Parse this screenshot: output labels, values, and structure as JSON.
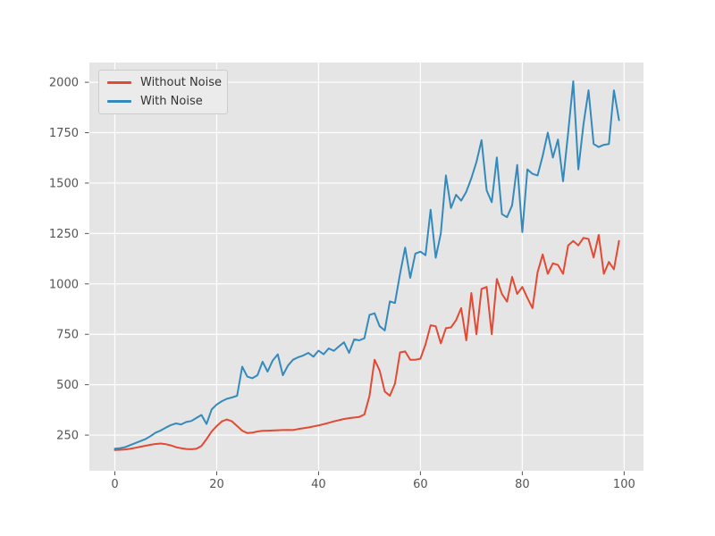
{
  "chart_data": {
    "type": "line",
    "title": "",
    "xlabel": "",
    "ylabel": "",
    "x_start": 0,
    "x_step": 1,
    "x_ticks": [
      0,
      20,
      40,
      60,
      80,
      100
    ],
    "y_ticks": [
      250,
      500,
      750,
      1000,
      1250,
      1500,
      1750,
      2000
    ],
    "xlim": [
      -5,
      103.8
    ],
    "ylim": [
      73,
      2098
    ],
    "grid": true,
    "legend_position": "upper left",
    "series": [
      {
        "name": "Without Noise",
        "color": "#E24A33",
        "values": [
          176,
          177,
          179,
          182,
          187,
          192,
          197,
          202,
          206,
          208,
          205,
          199,
          190,
          185,
          181,
          180,
          182,
          196,
          230,
          268,
          295,
          318,
          328,
          318,
          295,
          272,
          260,
          262,
          268,
          271,
          272,
          273,
          274,
          275,
          276,
          275,
          280,
          284,
          288,
          293,
          298,
          304,
          311,
          318,
          324,
          330,
          334,
          337,
          340,
          352,
          444,
          624,
          570,
          466,
          445,
          505,
          660,
          665,
          624,
          624,
          629,
          700,
          795,
          790,
          705,
          780,
          784,
          820,
          880,
          720,
          955,
          750,
          975,
          985,
          750,
          1025,
          950,
          912,
          1035,
          950,
          985,
          930,
          880,
          1058,
          1146,
          1050,
          1102,
          1094,
          1050,
          1191,
          1213,
          1191,
          1228,
          1223,
          1131,
          1243,
          1050,
          1109,
          1072,
          1213
        ]
      },
      {
        "name": "With Noise",
        "color": "#348ABD",
        "values": [
          183,
          185,
          190,
          200,
          210,
          220,
          230,
          245,
          262,
          273,
          287,
          300,
          308,
          303,
          315,
          320,
          335,
          350,
          305,
          377,
          402,
          418,
          430,
          437,
          445,
          589,
          540,
          532,
          547,
          614,
          565,
          620,
          651,
          547,
          595,
          624,
          636,
          645,
          658,
          639,
          669,
          651,
          680,
          668,
          690,
          710,
          658,
          725,
          720,
          730,
          846,
          854,
          790,
          769,
          913,
          905,
          1050,
          1180,
          1030,
          1150,
          1160,
          1142,
          1368,
          1130,
          1250,
          1538,
          1376,
          1442,
          1413,
          1457,
          1524,
          1605,
          1713,
          1464,
          1405,
          1627,
          1346,
          1331,
          1390,
          1590,
          1257,
          1568,
          1546,
          1538,
          1635,
          1750,
          1627,
          1716,
          1509,
          1750,
          2005,
          1568,
          1790,
          1960,
          1694,
          1679,
          1690,
          1694,
          1960,
          1812
        ]
      }
    ],
    "colors": {
      "figure_bg": "#ffffff",
      "plot_bg": "#e5e5e5",
      "grid_color": "#ffffff",
      "tick_color": "#555555",
      "tick_label_color": "#555555",
      "legend_bg": "#ebebeb",
      "legend_border": "#cccccc",
      "legend_text": "#333333"
    }
  }
}
